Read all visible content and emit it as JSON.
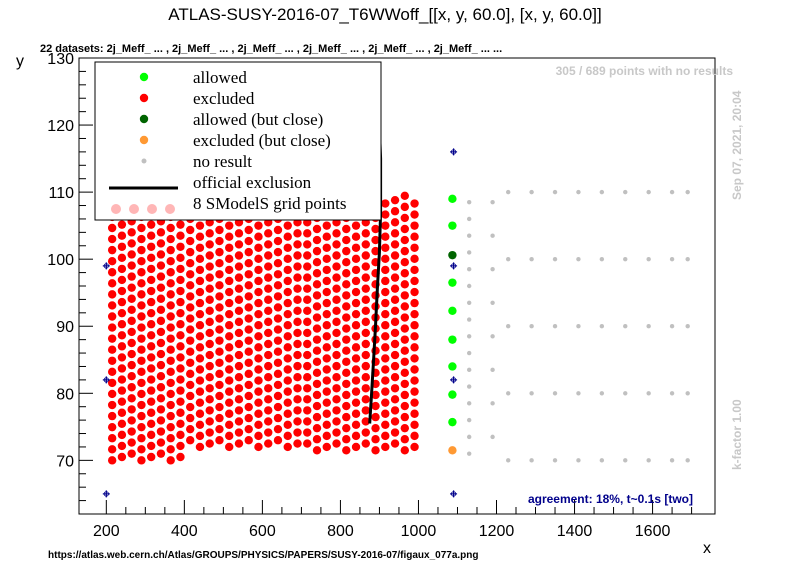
{
  "header": {
    "title": "ATLAS-SUSY-2016-07_T6WWoff_[[x, y, 60.0], [x, y, 60.0]]",
    "subtitle": "22 datasets: 2j_Meff_ ... , 2j_Meff_ ... , 2j_Meff_ ... , 2j_Meff_ ... , 2j_Meff_ ... , 2j_Meff_ ... ..."
  },
  "notes": {
    "no_results": "305 / 689 points with no results",
    "timestamp": "Sep 07, 2021, 20:04",
    "kfactor": "k-factor 1.00",
    "agreement": "agreement: 18%, t~0.1s [two]",
    "url": "https://atlas.web.cern.ch/Atlas/GROUPS/PHYSICS/PAPERS/SUSY-2016-07/figaux_077a.png"
  },
  "chart_data": {
    "type": "scatter",
    "xlabel": "x",
    "ylabel": "y",
    "xlim": [
      130,
      1760
    ],
    "ylim": [
      62,
      130
    ],
    "xticks": [
      200,
      400,
      600,
      800,
      1000,
      1200,
      1400,
      1600
    ],
    "yticks": [
      70,
      80,
      90,
      100,
      110,
      120,
      130
    ],
    "legend": {
      "placement": "top-left",
      "entries": [
        {
          "key": "allowed",
          "label": "allowed",
          "color": "#00ff00"
        },
        {
          "key": "excluded",
          "label": "excluded",
          "color": "#ff0000"
        },
        {
          "key": "allowed_close",
          "label": "allowed (but close)",
          "color": "#006400"
        },
        {
          "key": "excluded_close",
          "label": "excluded (but close)",
          "color": "#ff9933"
        },
        {
          "key": "no_result",
          "label": "no result",
          "color": "#c0c0c0"
        },
        {
          "key": "official",
          "label": "official exclusion",
          "color": "#000000"
        },
        {
          "key": "grid",
          "label": "8 SModelS grid points",
          "color": "#ffb6b6"
        }
      ]
    },
    "excluded_region": {
      "x_range": [
        215,
        1000
      ],
      "y_range": [
        70,
        110
      ],
      "note": "dense grid of excluded points, x step ~25, y step ~1.6"
    },
    "allowed_points": [
      {
        "x": 1087,
        "y": 109
      },
      {
        "x": 1087,
        "y": 105
      },
      {
        "x": 1087,
        "y": 96.5
      },
      {
        "x": 1087,
        "y": 92.3
      },
      {
        "x": 1087,
        "y": 88
      },
      {
        "x": 1087,
        "y": 84
      },
      {
        "x": 1087,
        "y": 79.8
      },
      {
        "x": 1087,
        "y": 75.7
      }
    ],
    "allowed_close_points": [
      {
        "x": 1087,
        "y": 100.6
      }
    ],
    "excluded_close_points": [
      {
        "x": 1087,
        "y": 71.5
      }
    ],
    "no_result_points": {
      "column_x": [
        1130,
        1190
      ],
      "column_y": [
        71,
        73.5,
        76,
        78.5,
        81,
        83.5,
        86,
        88.5,
        91,
        93.5,
        96,
        98.5,
        101,
        103.5,
        106,
        108.5
      ],
      "grid_x": [
        1230,
        1290,
        1350,
        1410,
        1470,
        1530,
        1590,
        1650,
        1690
      ],
      "grid_y": [
        70,
        80,
        90,
        100,
        110
      ]
    },
    "grid_points": [
      {
        "x": 200,
        "y": 65
      },
      {
        "x": 200,
        "y": 82
      },
      {
        "x": 200,
        "y": 99
      },
      {
        "x": 200,
        "y": 116
      },
      {
        "x": 1090,
        "y": 65
      },
      {
        "x": 1090,
        "y": 82
      },
      {
        "x": 1090,
        "y": 99
      },
      {
        "x": 1090,
        "y": 116
      }
    ],
    "grid_point_extra": [
      {
        "x": 290,
        "y": 108
      }
    ],
    "official_exclusion": [
      {
        "x": 875,
        "y": 75.5
      },
      {
        "x": 880,
        "y": 80
      },
      {
        "x": 885,
        "y": 85
      },
      {
        "x": 890,
        "y": 90
      },
      {
        "x": 895,
        "y": 96
      },
      {
        "x": 900,
        "y": 101
      },
      {
        "x": 903,
        "y": 107
      },
      {
        "x": 903,
        "y": 115
      },
      {
        "x": 895,
        "y": 127
      }
    ]
  }
}
